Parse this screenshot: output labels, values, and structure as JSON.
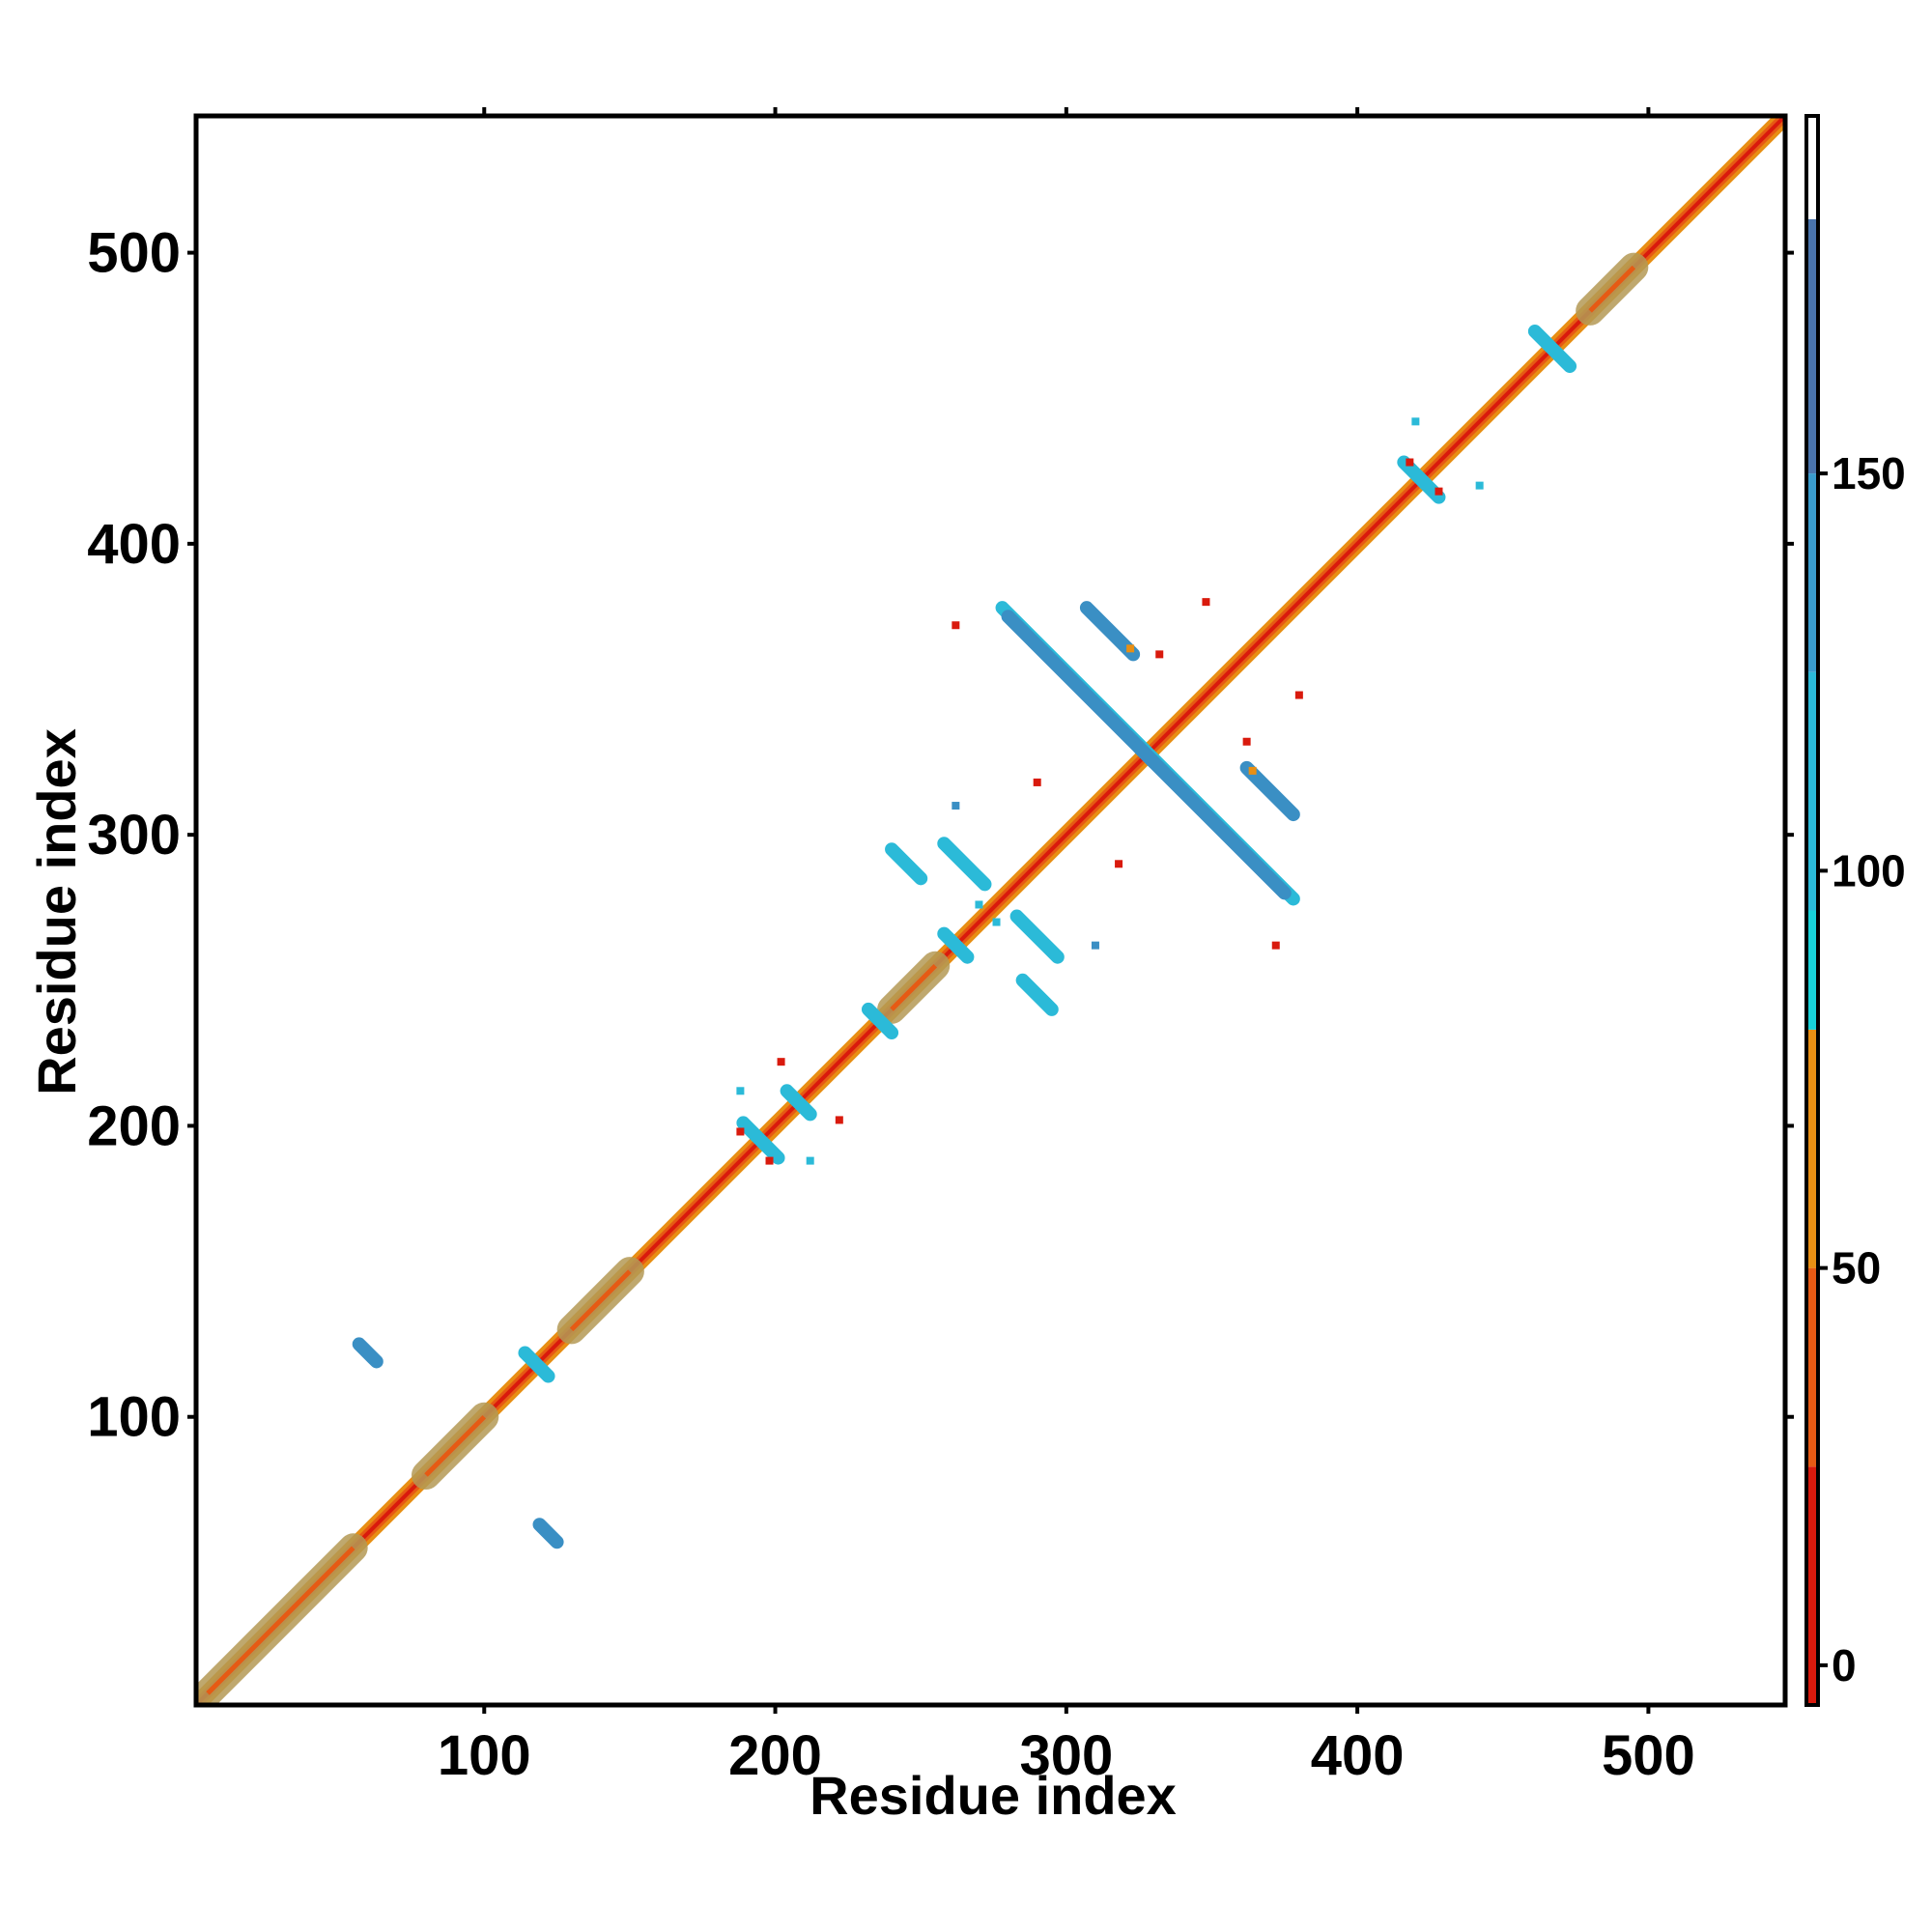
{
  "chart_data": {
    "type": "heatmap",
    "title": "",
    "xlabel": "Residue index",
    "ylabel": "Residue index",
    "xlim": [
      1,
      547
    ],
    "ylim": [
      1,
      547
    ],
    "x_ticks": [
      100,
      200,
      300,
      400,
      500
    ],
    "y_ticks": [
      100,
      200,
      300,
      400,
      500
    ],
    "grid": false,
    "colorbar": {
      "ticks": [
        0,
        50,
        100,
        150
      ],
      "range": [
        -5,
        195
      ],
      "segments": [
        {
          "from": -5,
          "to": 25,
          "color": "#d91a0d"
        },
        {
          "from": 25,
          "to": 50,
          "color": "#e65a14"
        },
        {
          "from": 50,
          "to": 80,
          "color": "#e88f14"
        },
        {
          "from": 80,
          "to": 95,
          "color": "#18d2d8"
        },
        {
          "from": 95,
          "to": 125,
          "color": "#2bbad8"
        },
        {
          "from": 125,
          "to": 150,
          "color": "#3a9ccd"
        },
        {
          "from": 150,
          "to": 182,
          "color": "#4a74ac"
        },
        {
          "from": 182,
          "to": 195,
          "color": "#ffffff"
        }
      ]
    },
    "colors": {
      "diagonal_core": "#d91a0d",
      "diagonal_mid": "#e65a14",
      "diagonal_outer": "#e88f14",
      "helix_band": "#b49a55",
      "contact_cyan": "#2bbad8",
      "contact_blue": "#3a8fc4",
      "contact_bright": "#18d2d8"
    },
    "helix_segments": [
      [
        5,
        55
      ],
      [
        80,
        100
      ],
      [
        130,
        150
      ],
      [
        240,
        255
      ],
      [
        480,
        495
      ]
    ],
    "contact_features": [
      {
        "type": "antidiagonal",
        "center": [
          328,
          328
        ],
        "half_length": 50,
        "color": "contact_cyan"
      },
      {
        "type": "antidiagonal",
        "center": [
          315,
          370
        ],
        "half_length": 8,
        "color": "contact_blue"
      },
      {
        "type": "antidiagonal",
        "center": [
          370,
          315
        ],
        "half_length": 8,
        "color": "contact_blue"
      },
      {
        "type": "antidiagonal",
        "center": [
          305,
          350
        ],
        "half_length": 25,
        "color": "contact_blue"
      },
      {
        "type": "antidiagonal",
        "center": [
          350,
          305
        ],
        "half_length": 25,
        "color": "contact_blue"
      },
      {
        "type": "antidiagonal",
        "center": [
          195,
          195
        ],
        "half_length": 6,
        "color": "contact_cyan"
      },
      {
        "type": "antidiagonal",
        "center": [
          422,
          422
        ],
        "half_length": 6,
        "color": "contact_cyan"
      },
      {
        "type": "antidiagonal",
        "center": [
          467,
          467
        ],
        "half_length": 6,
        "color": "contact_cyan"
      },
      {
        "type": "antidiagonal",
        "center": [
          118,
          118
        ],
        "half_length": 4,
        "color": "contact_cyan"
      },
      {
        "type": "antidiagonal",
        "center": [
          236,
          236
        ],
        "half_length": 4,
        "color": "contact_cyan"
      },
      {
        "type": "antidiagonal",
        "center": [
          208,
          208
        ],
        "half_length": 4,
        "color": "contact_cyan"
      },
      {
        "type": "antidiagonal",
        "center": [
          262,
          262
        ],
        "half_length": 4,
        "color": "contact_cyan"
      },
      {
        "type": "antidiagonal",
        "center": [
          290,
          245
        ],
        "half_length": 5,
        "color": "contact_cyan"
      },
      {
        "type": "antidiagonal",
        "center": [
          245,
          290
        ],
        "half_length": 5,
        "color": "contact_cyan"
      },
      {
        "type": "antidiagonal",
        "center": [
          265,
          290
        ],
        "half_length": 7,
        "color": "contact_cyan"
      },
      {
        "type": "antidiagonal",
        "center": [
          290,
          265
        ],
        "half_length": 7,
        "color": "contact_cyan"
      },
      {
        "type": "antidiagonal",
        "center": [
          60,
          122
        ],
        "half_length": 3,
        "color": "contact_blue"
      },
      {
        "type": "antidiagonal",
        "center": [
          122,
          60
        ],
        "half_length": 3,
        "color": "contact_blue"
      }
    ],
    "scatter_points": [
      {
        "x": 262,
        "y": 372,
        "color": "diagonal_core"
      },
      {
        "x": 372,
        "y": 262,
        "color": "diagonal_core"
      },
      {
        "x": 322,
        "y": 364,
        "color": "diagonal_outer"
      },
      {
        "x": 364,
        "y": 322,
        "color": "diagonal_outer"
      },
      {
        "x": 362,
        "y": 332,
        "color": "diagonal_core"
      },
      {
        "x": 332,
        "y": 362,
        "color": "diagonal_core"
      },
      {
        "x": 380,
        "y": 348,
        "color": "diagonal_core"
      },
      {
        "x": 348,
        "y": 380,
        "color": "diagonal_core"
      },
      {
        "x": 188,
        "y": 198,
        "color": "diagonal_core"
      },
      {
        "x": 198,
        "y": 188,
        "color": "diagonal_core"
      },
      {
        "x": 202,
        "y": 222,
        "color": "diagonal_core"
      },
      {
        "x": 222,
        "y": 202,
        "color": "diagonal_core"
      },
      {
        "x": 418,
        "y": 428,
        "color": "diagonal_core"
      },
      {
        "x": 428,
        "y": 418,
        "color": "diagonal_core"
      },
      {
        "x": 442,
        "y": 420,
        "color": "contact_cyan"
      },
      {
        "x": 420,
        "y": 442,
        "color": "contact_cyan"
      },
      {
        "x": 188,
        "y": 212,
        "color": "contact_cyan"
      },
      {
        "x": 212,
        "y": 188,
        "color": "contact_cyan"
      },
      {
        "x": 318,
        "y": 290,
        "color": "diagonal_core"
      },
      {
        "x": 290,
        "y": 318,
        "color": "diagonal_core"
      },
      {
        "x": 262,
        "y": 310,
        "color": "contact_blue"
      },
      {
        "x": 310,
        "y": 262,
        "color": "contact_blue"
      },
      {
        "x": 276,
        "y": 270,
        "color": "contact_cyan"
      },
      {
        "x": 270,
        "y": 276,
        "color": "contact_cyan"
      }
    ]
  }
}
